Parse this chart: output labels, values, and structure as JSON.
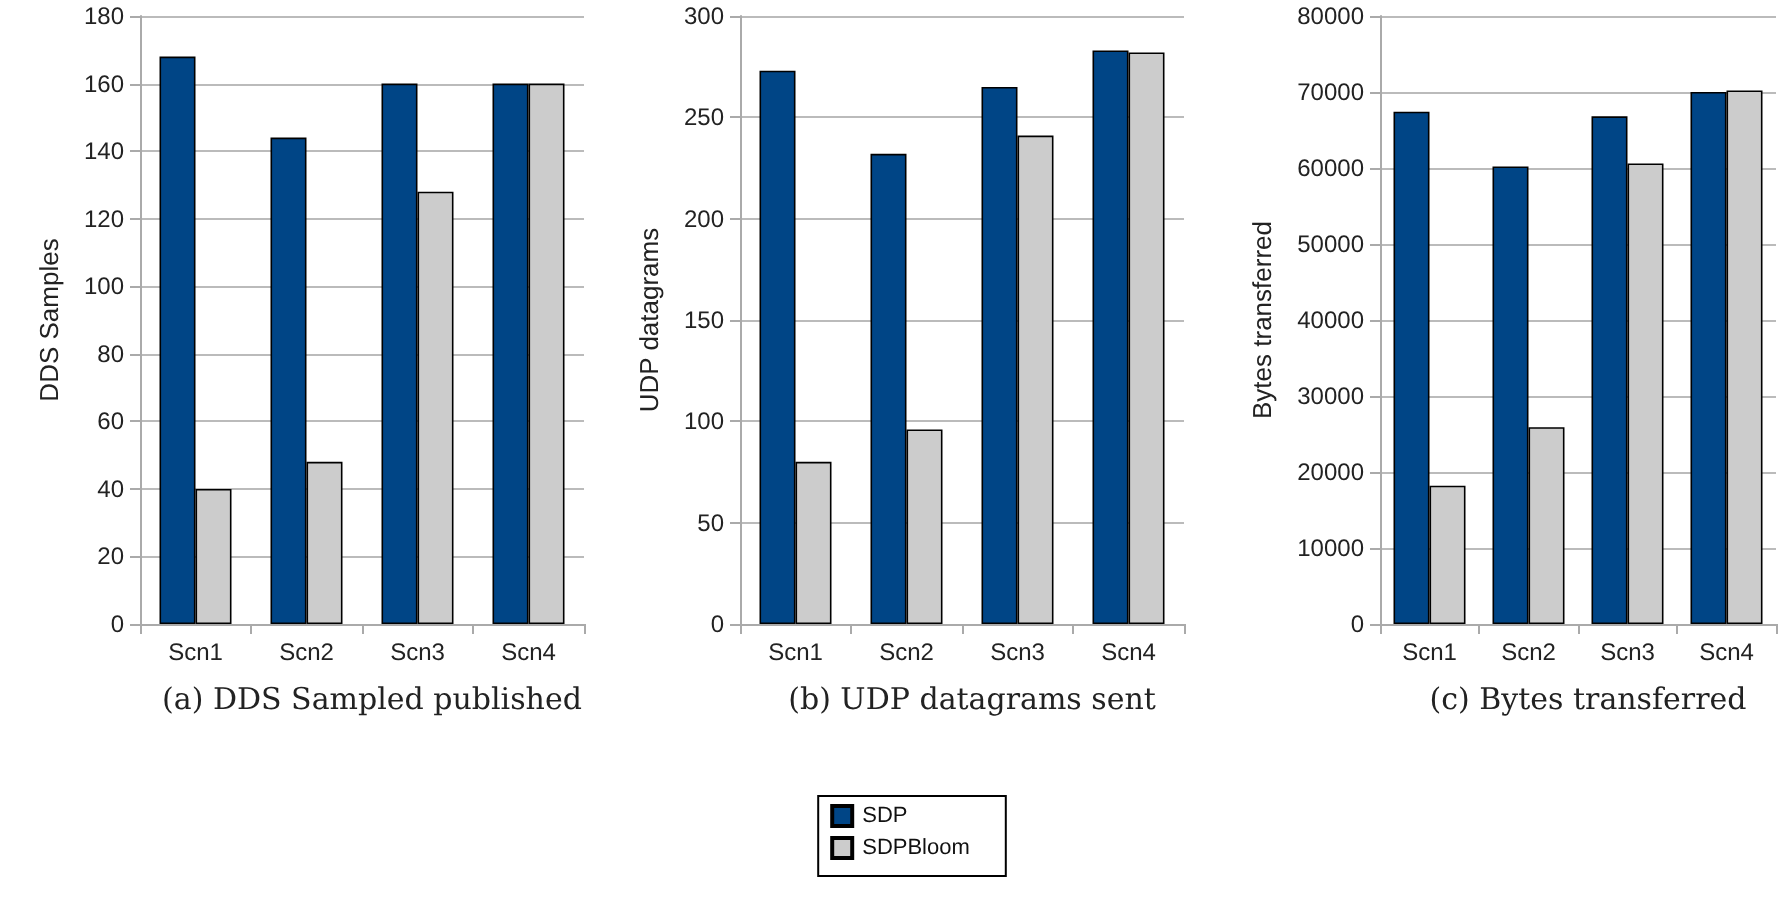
{
  "chart_data": [
    {
      "type": "bar",
      "title": "(a) DDS Sampled published",
      "ylabel": "DDS Samples",
      "categories": [
        "Scn1",
        "Scn2",
        "Scn3",
        "Scn4"
      ],
      "series": [
        {
          "color": "#004586",
          "values": [
            168,
            144,
            160,
            160
          ]
        },
        {
          "color": "#cccccc",
          "values": [
            40,
            48,
            128,
            160
          ]
        }
      ],
      "ylim": [
        0,
        180
      ],
      "yticks": [
        0,
        20,
        40,
        60,
        80,
        100,
        120,
        140,
        160,
        180
      ],
      "grid": "y",
      "legend": false
    },
    {
      "type": "bar",
      "title": "(b) UDP datagrams sent",
      "ylabel": "UDP datagrams",
      "categories": [
        "Scn1",
        "Scn2",
        "Scn3",
        "Scn4"
      ],
      "series": [
        {
          "name": "SDP",
          "color": "#004586",
          "values": [
            273,
            232,
            265,
            283
          ]
        },
        {
          "name": "SDPBloom",
          "color": "#cccccc",
          "values": [
            80,
            96,
            241,
            282
          ]
        }
      ],
      "ylim": [
        0,
        300
      ],
      "yticks": [
        0,
        50,
        100,
        150,
        200,
        250,
        300
      ],
      "grid": "y",
      "legend": "bottom"
    },
    {
      "type": "bar",
      "title": "(c) Bytes transferred",
      "ylabel": "Bytes transferred",
      "categories": [
        "Scn1",
        "Scn2",
        "Scn3",
        "Scn4"
      ],
      "series": [
        {
          "color": "#004586",
          "values": [
            67400,
            60200,
            66800,
            70000
          ]
        },
        {
          "color": "#cccccc",
          "values": [
            18200,
            25900,
            60600,
            70200
          ]
        }
      ],
      "ylim": [
        0,
        80000
      ],
      "yticks": [
        0,
        10000,
        20000,
        30000,
        40000,
        50000,
        60000,
        70000,
        80000
      ],
      "grid": "y",
      "legend": false
    }
  ]
}
